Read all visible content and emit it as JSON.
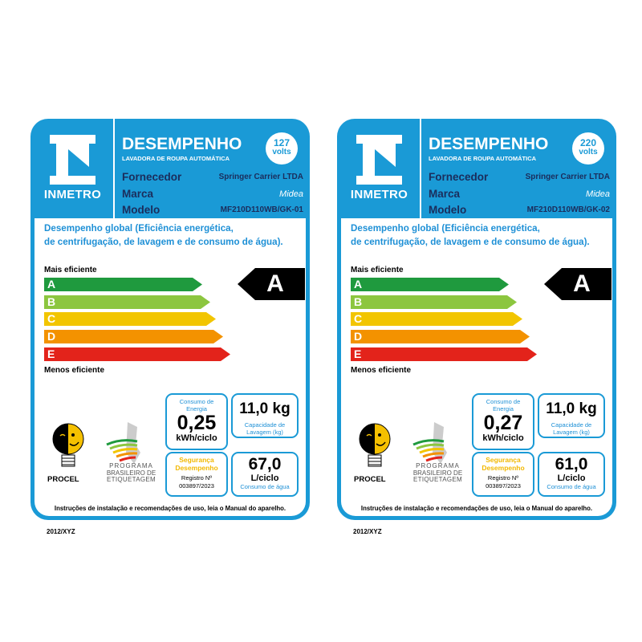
{
  "labels": [
    {
      "logo_text": "INMETRO",
      "title": "DESEMPENHO",
      "subtitle": "LAVADORA DE ROUPA AUTOMÁTICA",
      "voltage": "127",
      "voltage_unit": "volts",
      "fields": [
        {
          "key": "Fornecedor",
          "value": "Springer Carrier LTDA"
        },
        {
          "key": "Marca",
          "value": "Midea"
        },
        {
          "key": "Modelo",
          "value": "MF210D110WB/GK-01"
        }
      ],
      "description_1": "Desempenho global (Eficiência energética,",
      "description_2": "de centrifugação, de lavagem e de consumo de água).",
      "more_efficient": "Mais eficiente",
      "less_efficient": "Menos eficiente",
      "classes": [
        "A",
        "B",
        "C",
        "D",
        "E"
      ],
      "rating": "A",
      "energy_label": "Consumo de Energia",
      "energy_value": "0,25",
      "energy_unit": "kWh/ciclo",
      "capacity_value": "11,0 kg",
      "capacity_label": "Capacidade de Lavagem (kg)",
      "safety_1": "Segurança",
      "safety_2": "Desempenho",
      "registry_label": "Registro Nº",
      "registry_number": "003897/2023",
      "water_value": "67,0",
      "water_unit": "L/ciclo",
      "water_label": "Consumo de água",
      "procel": "PROCEL",
      "pbe": [
        "PROGRAMA",
        "BRASILEIRO DE",
        "ETIQUETAGEM"
      ],
      "footer": "Instruções de instalação e recomendações de uso, leia o Manual do aparelho.",
      "code": "2012/XYZ"
    },
    {
      "logo_text": "INMETRO",
      "title": "DESEMPENHO",
      "subtitle": "LAVADORA DE ROUPA AUTOMÁTICA",
      "voltage": "220",
      "voltage_unit": "volts",
      "fields": [
        {
          "key": "Fornecedor",
          "value": "Springer Carrier LTDA"
        },
        {
          "key": "Marca",
          "value": "Midea"
        },
        {
          "key": "Modelo",
          "value": "MF210D110WB/GK-02"
        }
      ],
      "description_1": "Desempenho global (Eficiência energética,",
      "description_2": "de centrifugação, de lavagem e de consumo de água).",
      "more_efficient": "Mais eficiente",
      "less_efficient": "Menos eficiente",
      "classes": [
        "A",
        "B",
        "C",
        "D",
        "E"
      ],
      "rating": "A",
      "energy_label": "Consumo de Energia",
      "energy_value": "0,27",
      "energy_unit": "kWh/ciclo",
      "capacity_value": "11,0 kg",
      "capacity_label": "Capacidade de Lavagem (kg)",
      "safety_1": "Segurança",
      "safety_2": "Desempenho",
      "registry_label": "Registro Nº",
      "registry_number": "003897/2023",
      "water_value": "61,0",
      "water_unit": "L/ciclo",
      "water_label": "Consumo de água",
      "procel": "PROCEL",
      "pbe": [
        "PROGRAMA",
        "BRASILEIRO DE",
        "ETIQUETAGEM"
      ],
      "footer": "Instruções de instalação e recomendações de uso, leia o Manual do aparelho.",
      "code": "2012/XYZ"
    }
  ],
  "colors": {
    "label_blue": "#1a9ad6",
    "class_A": "#1f9a3e",
    "class_B": "#8cc63f",
    "class_C": "#f2c500",
    "class_D": "#f39200",
    "class_E": "#e3231b"
  }
}
